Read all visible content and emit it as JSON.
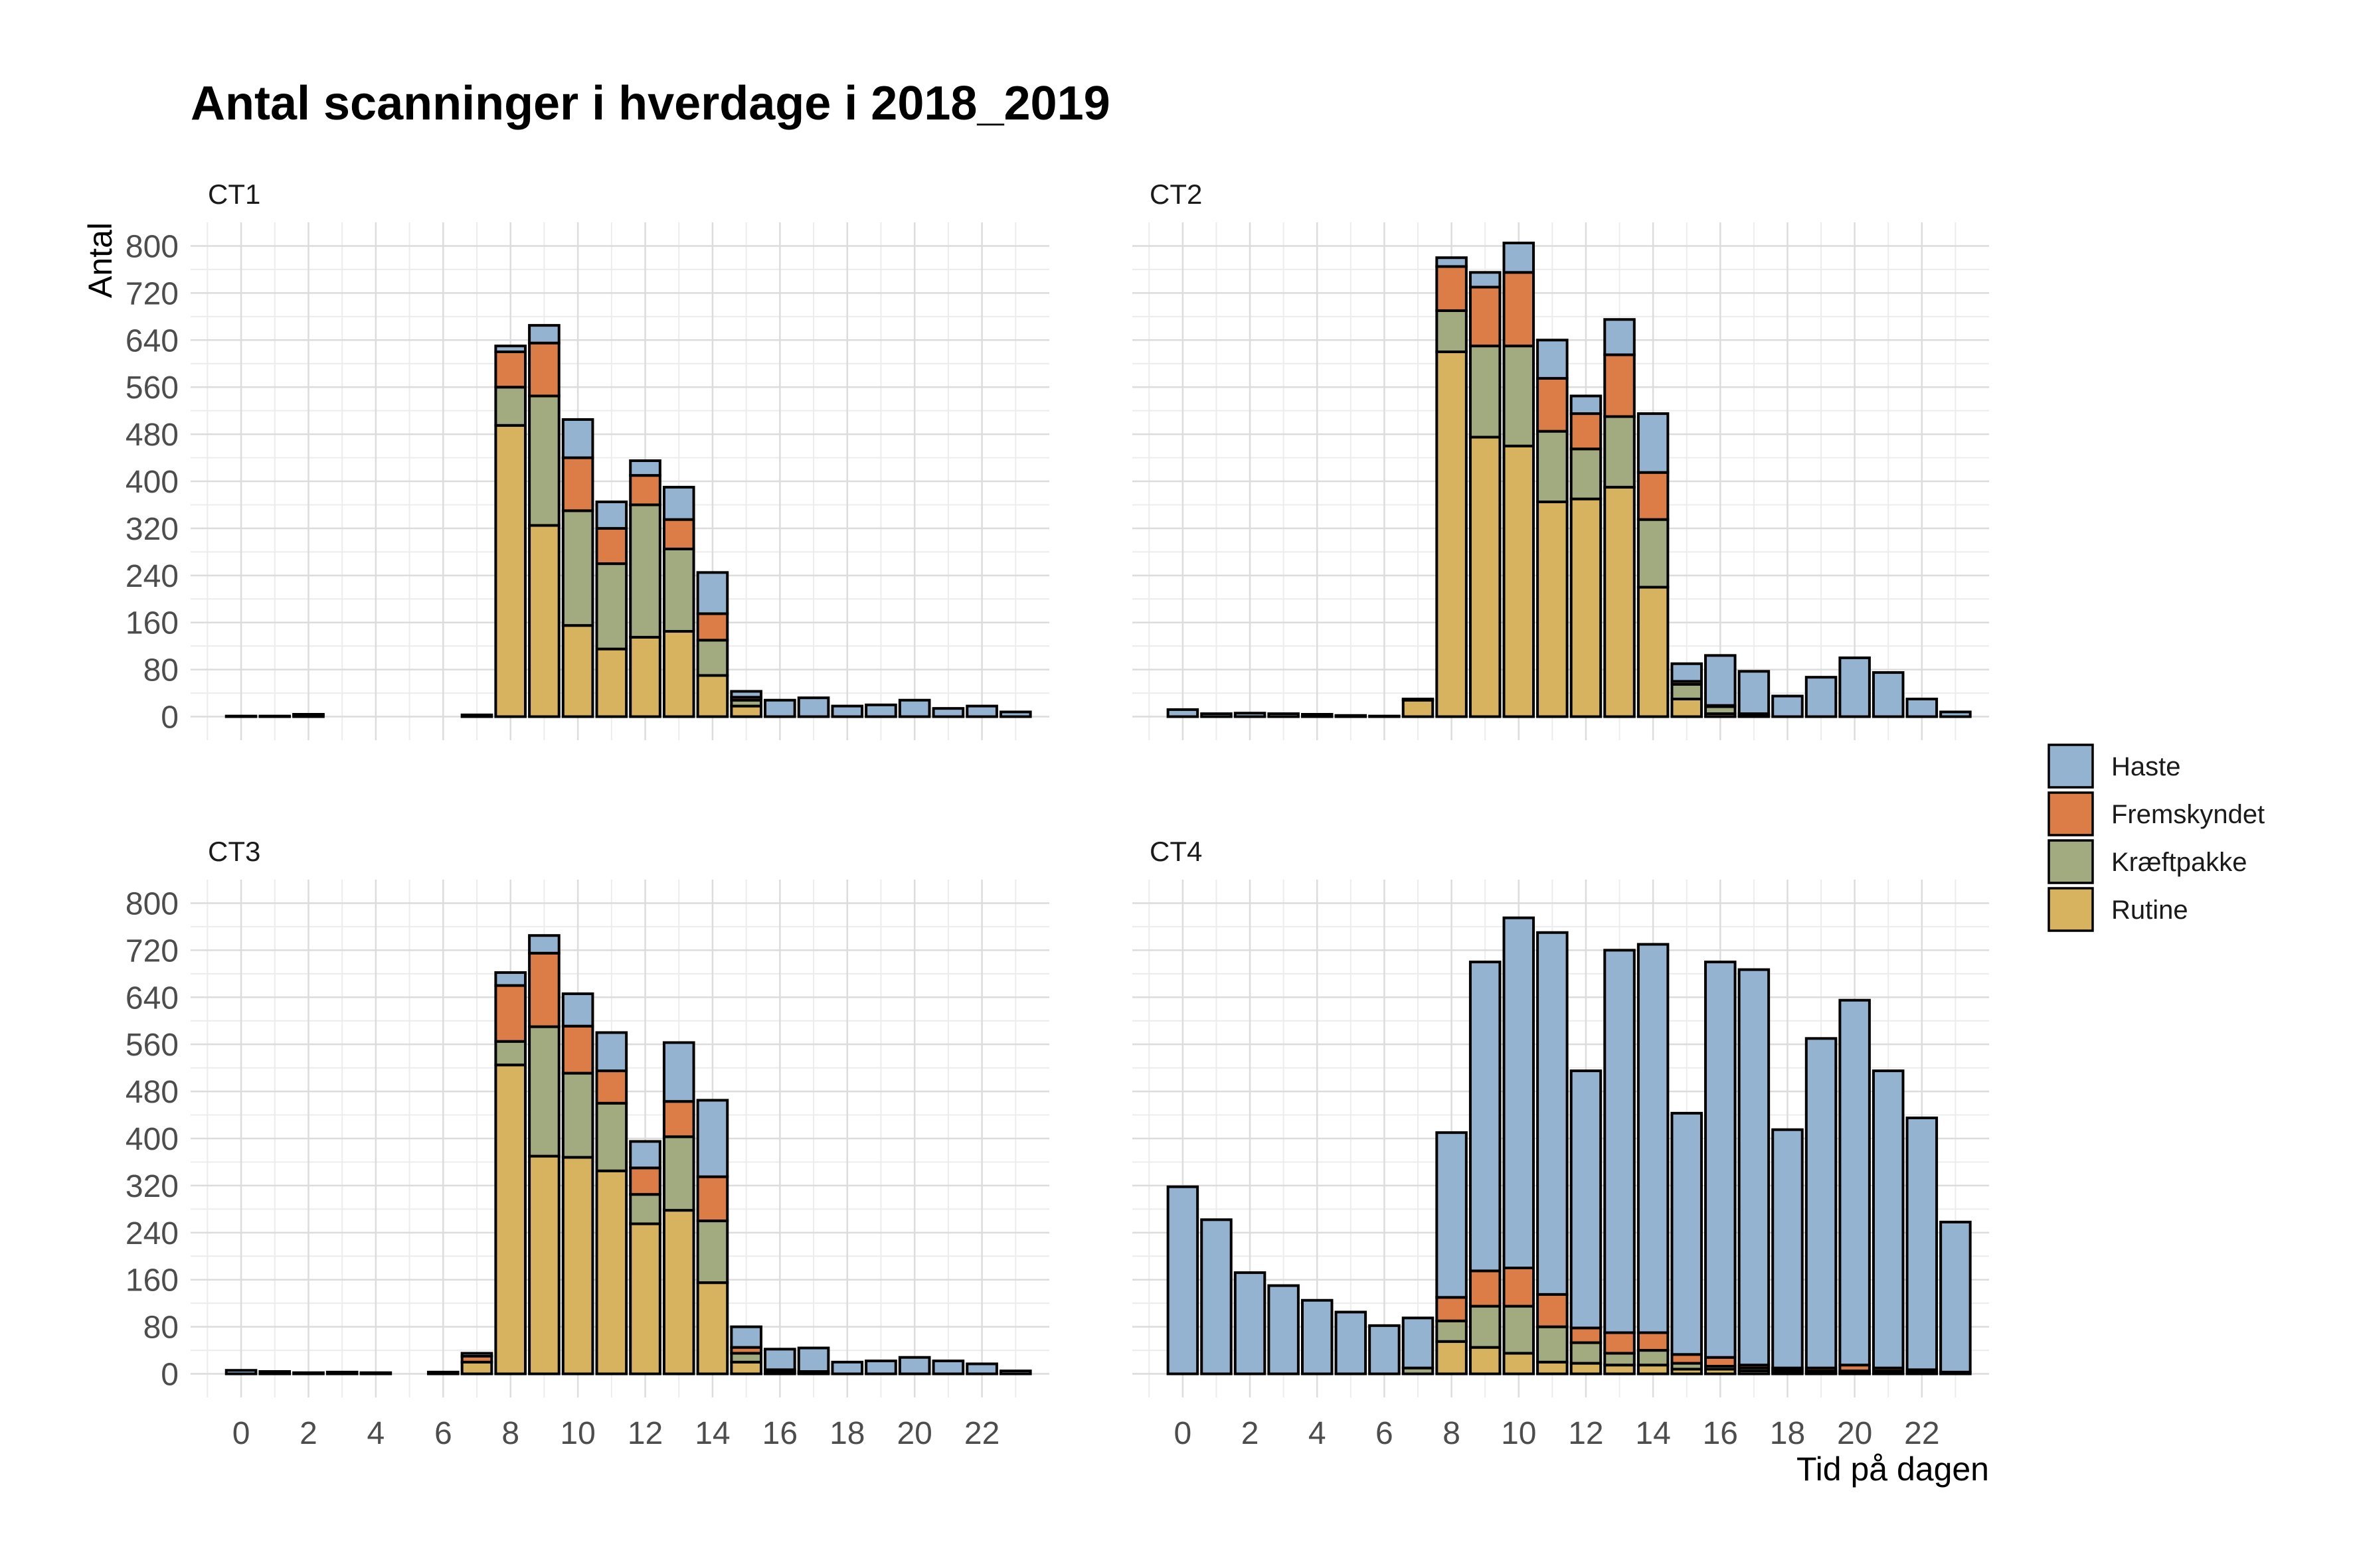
{
  "chart_data": {
    "type": "bar",
    "stacked": true,
    "title": "Antal scanninger i hverdage i 2018_2019",
    "xlabel": "Tid på dagen",
    "ylabel": "Antal",
    "x": [
      0,
      1,
      2,
      3,
      4,
      5,
      6,
      7,
      8,
      9,
      10,
      11,
      12,
      13,
      14,
      15,
      16,
      17,
      18,
      19,
      20,
      21,
      22,
      23
    ],
    "x_ticks": [
      0,
      2,
      4,
      6,
      8,
      10,
      12,
      14,
      16,
      18,
      20,
      22
    ],
    "x_tick_labels": [
      "0",
      "2",
      "4",
      "6",
      "8",
      "10",
      "12",
      "14",
      "16",
      "18",
      "20",
      "22"
    ],
    "y_ticks": [
      0,
      80,
      160,
      240,
      320,
      400,
      480,
      560,
      640,
      720,
      800
    ],
    "y_tick_labels": [
      "0",
      "80",
      "160",
      "240",
      "320",
      "400",
      "480",
      "560",
      "640",
      "720",
      "800"
    ],
    "ylim": [
      -40,
      840
    ],
    "xlim": [
      -1.5,
      24.0
    ],
    "grid": true,
    "legend_position": "right",
    "series_order": [
      "Rutine",
      "Kræftpakke",
      "Fremskyndet",
      "Haste"
    ],
    "legend": [
      {
        "name": "Haste",
        "color": "#93b3d0"
      },
      {
        "name": "Fremskyndet",
        "color": "#dc7d47"
      },
      {
        "name": "Kræftpakke",
        "color": "#a2aa80"
      },
      {
        "name": "Rutine",
        "color": "#d7b25f"
      }
    ],
    "colors": {
      "Haste": "#93b3d0",
      "Fremskyndet": "#dc7d47",
      "Kræftpakke": "#a2aa80",
      "Rutine": "#d7b25f"
    },
    "panels": [
      {
        "label": "CT1",
        "hours": [
          0,
          1,
          2,
          7,
          8,
          9,
          10,
          11,
          12,
          13,
          14,
          15,
          16,
          17,
          18,
          19,
          20,
          21,
          22,
          23
        ],
        "series": [
          {
            "name": "Rutine",
            "values": [
              1,
              1,
              3,
              3,
              495,
              325,
              155,
              115,
              135,
              145,
              70,
              18,
              0,
              0,
              0,
              0,
              0,
              0,
              0,
              0
            ]
          },
          {
            "name": "Kræftpakke",
            "values": [
              0,
              0,
              0,
              0,
              65,
              220,
              195,
              145,
              225,
              140,
              60,
              10,
              0,
              0,
              0,
              0,
              0,
              0,
              0,
              0
            ]
          },
          {
            "name": "Fremskyndet",
            "values": [
              0,
              0,
              0,
              0,
              60,
              90,
              90,
              60,
              50,
              50,
              45,
              5,
              0,
              0,
              0,
              0,
              0,
              0,
              0,
              0
            ]
          },
          {
            "name": "Haste",
            "values": [
              0,
              0,
              1,
              0,
              10,
              30,
              65,
              45,
              25,
              55,
              70,
              10,
              28,
              32,
              18,
              20,
              28,
              14,
              18,
              8
            ]
          }
        ]
      },
      {
        "label": "CT2",
        "hours": [
          0,
          1,
          2,
          3,
          4,
          5,
          6,
          7,
          8,
          9,
          10,
          11,
          12,
          13,
          14,
          15,
          16,
          17,
          18,
          19,
          20,
          21,
          22,
          23
        ],
        "series": [
          {
            "name": "Rutine",
            "values": [
              0,
              0,
              0,
              0,
              0,
              0,
              0,
              28,
              620,
              475,
              460,
              365,
              370,
              390,
              220,
              30,
              5,
              2,
              0,
              0,
              0,
              0,
              0,
              0
            ]
          },
          {
            "name": "Kræftpakke",
            "values": [
              0,
              0,
              0,
              0,
              0,
              0,
              0,
              0,
              70,
              155,
              170,
              120,
              85,
              120,
              115,
              25,
              12,
              3,
              0,
              0,
              0,
              0,
              0,
              0
            ]
          },
          {
            "name": "Fremskyndet",
            "values": [
              0,
              0,
              0,
              0,
              0,
              0,
              0,
              0,
              75,
              100,
              125,
              90,
              60,
              105,
              80,
              5,
              2,
              0,
              0,
              0,
              0,
              0,
              0,
              0
            ]
          },
          {
            "name": "Haste",
            "values": [
              12,
              5,
              6,
              5,
              4,
              2,
              1,
              2,
              15,
              25,
              50,
              65,
              30,
              60,
              100,
              30,
              85,
              72,
              35,
              67,
              100,
              75,
              30,
              8
            ]
          }
        ]
      },
      {
        "label": "CT3",
        "hours": [
          0,
          1,
          2,
          3,
          4,
          6,
          7,
          8,
          9,
          10,
          11,
          12,
          13,
          14,
          15,
          16,
          17,
          18,
          19,
          20,
          21,
          22,
          23
        ],
        "series": [
          {
            "name": "Rutine",
            "values": [
              0,
              0,
              0,
              0,
              0,
              0,
              20,
              525,
              370,
              368,
              345,
              255,
              278,
              155,
              20,
              2,
              2,
              0,
              0,
              0,
              0,
              0,
              0
            ]
          },
          {
            "name": "Kræftpakke",
            "values": [
              0,
              0,
              0,
              0,
              0,
              0,
              0,
              40,
              220,
              143,
              115,
              50,
              125,
              105,
              15,
              3,
              2,
              0,
              0,
              0,
              0,
              0,
              0
            ]
          },
          {
            "name": "Fremskyndet",
            "values": [
              0,
              0,
              0,
              0,
              0,
              0,
              10,
              95,
              125,
              80,
              55,
              45,
              60,
              75,
              10,
              2,
              0,
              0,
              0,
              0,
              0,
              0,
              0
            ]
          },
          {
            "name": "Haste",
            "values": [
              6,
              4,
              2,
              3,
              2,
              3,
              5,
              22,
              30,
              55,
              65,
              45,
              100,
              130,
              35,
              35,
              40,
              20,
              22,
              28,
              22,
              17,
              5
            ]
          }
        ]
      },
      {
        "label": "CT4",
        "hours": [
          0,
          1,
          2,
          3,
          4,
          5,
          6,
          7,
          8,
          9,
          10,
          11,
          12,
          13,
          14,
          15,
          16,
          17,
          18,
          19,
          20,
          21,
          22,
          23
        ],
        "series": [
          {
            "name": "Rutine",
            "values": [
              0,
              0,
              0,
              0,
              0,
              0,
              0,
              0,
              55,
              45,
              35,
              20,
              18,
              15,
              15,
              8,
              8,
              5,
              3,
              2,
              2,
              2,
              2,
              0
            ]
          },
          {
            "name": "Kræftpakke",
            "values": [
              0,
              0,
              0,
              0,
              0,
              0,
              0,
              10,
              35,
              70,
              80,
              60,
              35,
              20,
              25,
              10,
              5,
              5,
              3,
              3,
              3,
              3,
              2,
              0
            ]
          },
          {
            "name": "Fremskyndet",
            "values": [
              0,
              0,
              0,
              0,
              0,
              0,
              0,
              0,
              40,
              60,
              65,
              55,
              25,
              35,
              30,
              15,
              15,
              5,
              4,
              5,
              10,
              5,
              3,
              3
            ]
          },
          {
            "name": "Haste",
            "values": [
              318,
              262,
              172,
              150,
              125,
              105,
              82,
              85,
              280,
              525,
              595,
              615,
              437,
              650,
              660,
              410,
              672,
              672,
              405,
              560,
              620,
              505,
              428,
              255
            ]
          }
        ]
      }
    ]
  }
}
